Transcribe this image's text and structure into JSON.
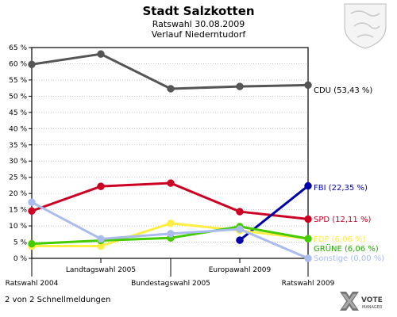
{
  "header": {
    "title": "Stadt Salzkotten",
    "subtitle1": "Ratswahl 30.08.2009",
    "subtitle2": "Verlauf Niederntudorf"
  },
  "footer": {
    "page_info": "2 von 2 Schnellmeldungen",
    "logo_word": "VOTE",
    "logo_sub": "MANAGER"
  },
  "chart_data": {
    "type": "line",
    "title": "Stadt Salzkotten",
    "subtitle": "Ratswahl 30.08.2009 · Verlauf Niederntudorf",
    "categories": [
      "Ratswahl 2004",
      "Landtagswahl 2005",
      "Bundestagswahl 2005",
      "Europawahl 2009",
      "Ratswahl 2009"
    ],
    "ylim": [
      0,
      65
    ],
    "yticks": [
      0,
      5,
      10,
      15,
      20,
      25,
      30,
      35,
      40,
      45,
      50,
      55,
      60,
      65
    ],
    "ytick_labels": [
      "0 %",
      "5 %",
      "10 %",
      "15 %",
      "20 %",
      "25 %",
      "30 %",
      "35 %",
      "40 %",
      "45 %",
      "50 %",
      "55 %",
      "60 %",
      "65 %"
    ],
    "grid": true,
    "series": [
      {
        "name": "CDU",
        "label": "CDU (53,43 %)",
        "color": "#555555",
        "labelColor": "#000000",
        "values": [
          59.8,
          63.0,
          52.3,
          53.0,
          53.43
        ]
      },
      {
        "name": "SPD",
        "label": "SPD (12,11 %)",
        "color": "#cc0022",
        "labelColor": "#cc0022",
        "values": [
          14.6,
          22.2,
          23.2,
          14.4,
          12.11
        ]
      },
      {
        "name": "FBI",
        "label": "FBI (22,35 %)",
        "color": "#0000aa",
        "labelColor": "#0000aa",
        "values": [
          null,
          null,
          null,
          5.6,
          22.35
        ]
      },
      {
        "name": "FDP",
        "label": "FDP (6,06 %)",
        "color": "#ffee44",
        "labelColor": "#ffee44",
        "values": [
          3.8,
          3.8,
          10.8,
          8.6,
          6.06
        ]
      },
      {
        "name": "GRÜNE",
        "label": "GRÜNE (6,06 %)",
        "color": "#44cc00",
        "labelColor": "#22aa00",
        "values": [
          4.5,
          5.5,
          6.3,
          9.8,
          6.06
        ]
      },
      {
        "name": "Sonstige",
        "label": "Sonstige (0,00 %)",
        "color": "#aabbee",
        "labelColor": "#aabbee",
        "values": [
          17.3,
          6.0,
          7.6,
          9.0,
          0.0
        ]
      }
    ]
  }
}
